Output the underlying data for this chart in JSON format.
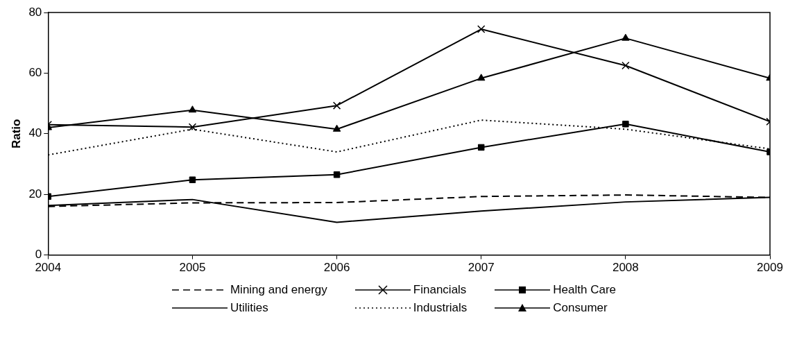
{
  "chart_data": {
    "type": "line",
    "ylabel": "Ratio",
    "x": [
      2004,
      2005,
      2006,
      2007,
      2008,
      2009
    ],
    "xlim": [
      2004,
      2009
    ],
    "xticks": [
      2004,
      2005,
      2006,
      2007,
      2008,
      2009
    ],
    "ylim": [
      0,
      80
    ],
    "yticks": [
      0,
      20,
      40,
      60,
      80
    ],
    "grid": false,
    "legend": "bottom",
    "series": [
      {
        "name": "Mining and energy",
        "color": "#000000",
        "line_style": "dashed",
        "marker": "none",
        "values": [
          16,
          17.2,
          17.3,
          19.3,
          19.8,
          19
        ]
      },
      {
        "name": "Financials",
        "color": "#000000",
        "line_style": "solid",
        "marker": "cross",
        "values": [
          43,
          42.2,
          49.3,
          74.5,
          62.5,
          44
        ]
      },
      {
        "name": "Health Care",
        "color": "#000000",
        "line_style": "solid",
        "marker": "square",
        "values": [
          19.3,
          24.8,
          26.5,
          35.5,
          43.2,
          34
        ]
      },
      {
        "name": "Utilities",
        "color": "#000000",
        "line_style": "solid",
        "marker": "none",
        "values": [
          16.3,
          18.3,
          10.8,
          14.5,
          17.5,
          19
        ]
      },
      {
        "name": "Industrials",
        "color": "#000000",
        "line_style": "dotted",
        "marker": "none",
        "values": [
          33,
          41.5,
          34,
          44.5,
          41.5,
          35
        ]
      },
      {
        "name": "Consumer",
        "color": "#000000",
        "line_style": "solid",
        "marker": "triangle",
        "values": [
          42,
          47.8,
          41.5,
          58.3,
          71.5,
          58.3
        ]
      }
    ]
  }
}
